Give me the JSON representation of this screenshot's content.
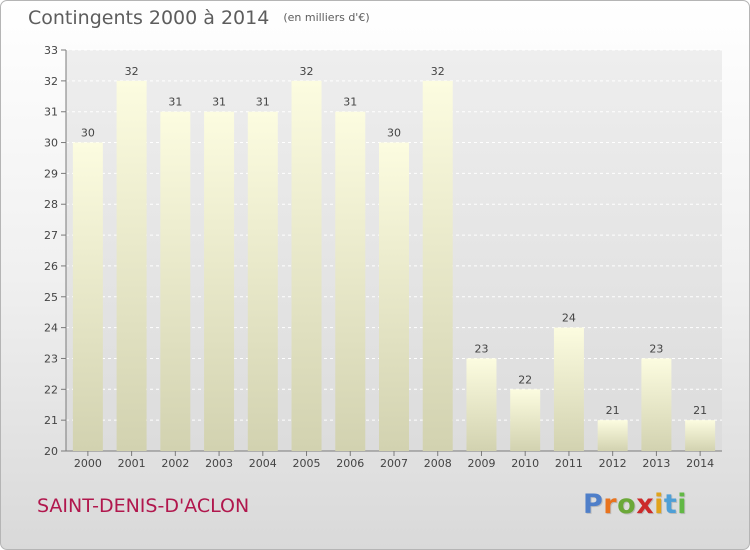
{
  "header": {
    "title": "Contingents 2000 à 2014",
    "unit_note": "(en milliers d'€)"
  },
  "footer": {
    "commune": "SAINT-DENIS-D'ACLON",
    "logo_text": "Proxiti"
  },
  "colors": {
    "logo": [
      "#4f7fc9",
      "#e8731e",
      "#6ba838",
      "#cc2a2a",
      "#e0a31c",
      "#4f9fd6",
      "#62b845"
    ],
    "commune": "#b1174d"
  },
  "chart_data": {
    "type": "bar",
    "title": "Contingents 2000 à 2014",
    "subtitle": "(en milliers d'€)",
    "categories": [
      "2000",
      "2001",
      "2002",
      "2003",
      "2004",
      "2005",
      "2006",
      "2007",
      "2008",
      "2009",
      "2010",
      "2011",
      "2012",
      "2013",
      "2014"
    ],
    "values": [
      30,
      32,
      31,
      31,
      31,
      32,
      31,
      30,
      32,
      23,
      22,
      24,
      21,
      23,
      21
    ],
    "ylim": [
      20,
      33
    ],
    "yticks": [
      20,
      21,
      22,
      23,
      24,
      25,
      26,
      27,
      28,
      29,
      30,
      31,
      32,
      33
    ],
    "grid": true,
    "data_labels": true
  }
}
